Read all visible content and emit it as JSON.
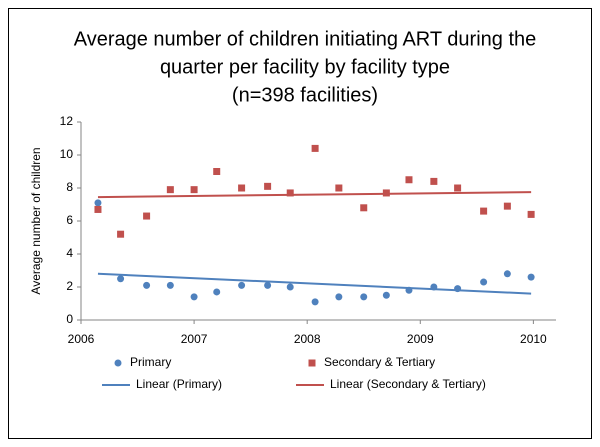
{
  "chart_data": {
    "type": "scatter",
    "title": [
      "Average number of children initiating ART during the",
      "quarter per facility by facility type",
      "(n=398 facilities)"
    ],
    "y_label": "Average number of children",
    "xlim": [
      2006,
      2010.2
    ],
    "xticks": [
      2006,
      2007,
      2008,
      2009,
      2010
    ],
    "ylim": [
      0,
      12
    ],
    "yticks": [
      0,
      2,
      4,
      6,
      8,
      10,
      12
    ],
    "series": [
      {
        "name": "Primary",
        "color": "#4f81bd",
        "style": "marker",
        "marker": "circle",
        "x": [
          2006.15,
          2006.35,
          2006.58,
          2006.79,
          2007.0,
          2007.2,
          2007.42,
          2007.65,
          2007.85,
          2008.07,
          2008.28,
          2008.5,
          2008.7,
          2008.9,
          2009.12,
          2009.33,
          2009.56,
          2009.77,
          2009.98
        ],
        "values": [
          7.1,
          2.5,
          2.1,
          2.1,
          1.4,
          1.7,
          2.1,
          2.1,
          2.0,
          1.1,
          1.4,
          1.4,
          1.5,
          1.8,
          2.0,
          1.9,
          2.3,
          2.8,
          2.6
        ]
      },
      {
        "name": "Secondary & Tertiary",
        "color": "#c0504d",
        "style": "marker",
        "marker": "square",
        "x": [
          2006.15,
          2006.35,
          2006.58,
          2006.79,
          2007.0,
          2007.2,
          2007.42,
          2007.65,
          2007.85,
          2008.07,
          2008.28,
          2008.5,
          2008.7,
          2008.9,
          2009.12,
          2009.33,
          2009.56,
          2009.77,
          2009.98
        ],
        "values": [
          6.7,
          5.2,
          6.3,
          7.9,
          7.9,
          9.0,
          8.0,
          8.1,
          7.7,
          10.4,
          8.0,
          6.8,
          7.7,
          8.5,
          8.4,
          8.0,
          6.6,
          6.9,
          6.4
        ]
      },
      {
        "name": "Linear (Primary)",
        "color": "#4f81bd",
        "style": "line",
        "x": [
          2006.15,
          2009.98
        ],
        "values": [
          2.8,
          1.6
        ]
      },
      {
        "name": "Linear (Secondary & Tertiary)",
        "color": "#c0504d",
        "style": "line",
        "x": [
          2006.15,
          2009.98
        ],
        "values": [
          7.45,
          7.75
        ]
      }
    ]
  }
}
